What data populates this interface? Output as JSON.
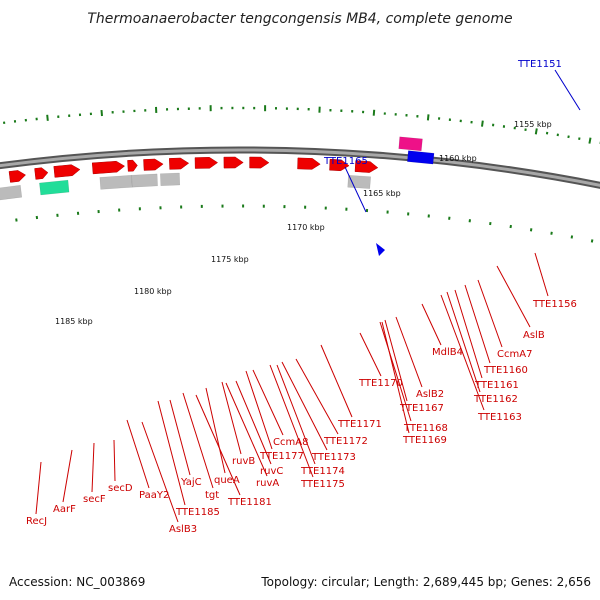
{
  "title": "Thermoanaerobacter tengcongensis MB4, complete genome",
  "footer": {
    "accession": "Accession: NC_003869",
    "topology": "Topology: circular; Length: 2,689,445 bp; Genes: 2,656"
  },
  "scale_labels": [
    "1155 kbp",
    "1160 kbp",
    "1165 kbp",
    "1170 kbp",
    "1175 kbp",
    "1180 kbp",
    "1185 kbp"
  ],
  "callouts": [
    "TTE1151",
    "TTE1165"
  ],
  "gene_labels": [
    "TTE1156",
    "AslB",
    "CcmA7",
    "TTE1160",
    "TTE1161",
    "TTE1162",
    "TTE1163",
    "MdlB4",
    "AslB2",
    "TTE1167",
    "TTE1168",
    "TTE1169",
    "TTE1170",
    "TTE1171",
    "TTE1172",
    "TTE1173",
    "TTE1174",
    "TTE1175",
    "CcmA8",
    "TTE1177",
    "ruvB",
    "ruvC",
    "ruvA",
    "queA",
    "TTE1181",
    "tgt",
    "YajC",
    "TTE1185",
    "PaaY2",
    "AslB3",
    "secD",
    "secF",
    "AarF",
    "RecJ"
  ],
  "colors": {
    "gene": "#ee0000",
    "label": "#cc0000",
    "callout": "#0000cc",
    "backbone": "#777777",
    "ticks": "#1a7a1a",
    "pink": "#ee1188",
    "grey": "#bbbbbb",
    "green": "#22dd99",
    "lime": "#aaee22",
    "salmon": "#f08080",
    "blue": "#0000ee"
  }
}
